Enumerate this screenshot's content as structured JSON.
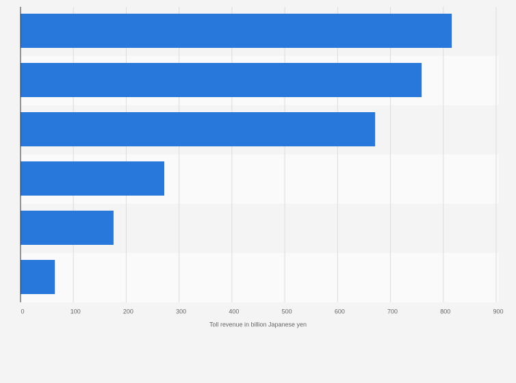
{
  "chart_data": {
    "type": "bar",
    "orientation": "horizontal",
    "x_axis_label": "Toll revenue in billion Japanese yen",
    "categories": [
      null,
      null,
      null,
      null,
      null,
      null
    ],
    "values": [
      816,
      759,
      671,
      272,
      176,
      65
    ],
    "color": "#2878dc",
    "xlim": [
      0,
      900
    ],
    "xticks": [
      0,
      100,
      200,
      300,
      400,
      500,
      600,
      700,
      800,
      900
    ],
    "grid": true
  }
}
